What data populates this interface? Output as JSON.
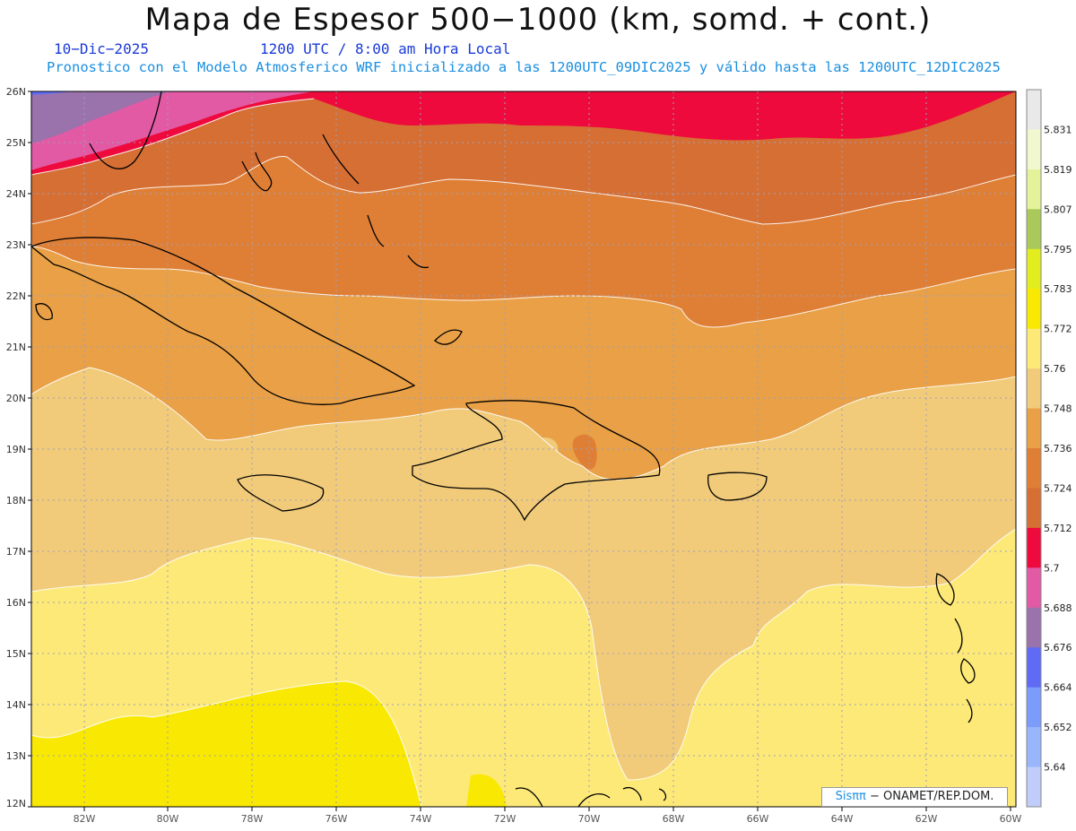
{
  "title": "Mapa de Espesor 500−1000 (km, somd. + cont.)",
  "date": "10−Dic−2025",
  "time": "1200 UTC / 8:00 am Hora Local",
  "forecast_line": "Pronostico con el Modelo Atmosferico WRF inicializado a las 1200UTC_09DIC2025 y válido hasta las  1200UTC_12DIC2025",
  "credit": {
    "brand": "Sisππ",
    "org": " − ONAMET/REP.DOM."
  },
  "map": {
    "lat_range": [
      12,
      26
    ],
    "lon_range": [
      -83.2,
      -60
    ],
    "lat_labels": [
      "26N",
      "25N",
      "24N",
      "23N",
      "22N",
      "21N",
      "20N",
      "19N",
      "18N",
      "17N",
      "16N",
      "15N",
      "14N",
      "13N",
      "12N"
    ],
    "lon_labels": [
      "82W",
      "80W",
      "78W",
      "76W",
      "74W",
      "72W",
      "70W",
      "68W",
      "66W",
      "64W",
      "62W",
      "60W"
    ]
  },
  "colorbar": {
    "labels": [
      "5.831",
      "5.819",
      "5.807",
      "5.795",
      "5.783",
      "5.772",
      "5.76",
      "5.748",
      "5.736",
      "5.724",
      "5.712",
      "5.7",
      "5.688",
      "5.676",
      "5.664",
      "5.652",
      "5.64"
    ],
    "colors": [
      "#e9e9e9",
      "#f1f7cf",
      "#e4f39a",
      "#a9c95b",
      "#e1ed1e",
      "#f8e802",
      "#fde978",
      "#f1cb7a",
      "#e9a046",
      "#df7f36",
      "#d66f34",
      "#ee0a3c",
      "#e25aa4",
      "#9a72ac",
      "#5f6bf4",
      "#7c9cfb",
      "#99b5fb",
      "#c0cdfb"
    ]
  },
  "colors": {
    "band_5712": "#d66f34",
    "band_5724": "#df7f36",
    "band_5736": "#e9a046",
    "band_5748": "#f1cb7a",
    "band_5760": "#fde978",
    "band_5772": "#f8e802",
    "band_5700": "#ee0a3c",
    "band_5688": "#e25aa4",
    "band_5676": "#9a72ac"
  }
}
